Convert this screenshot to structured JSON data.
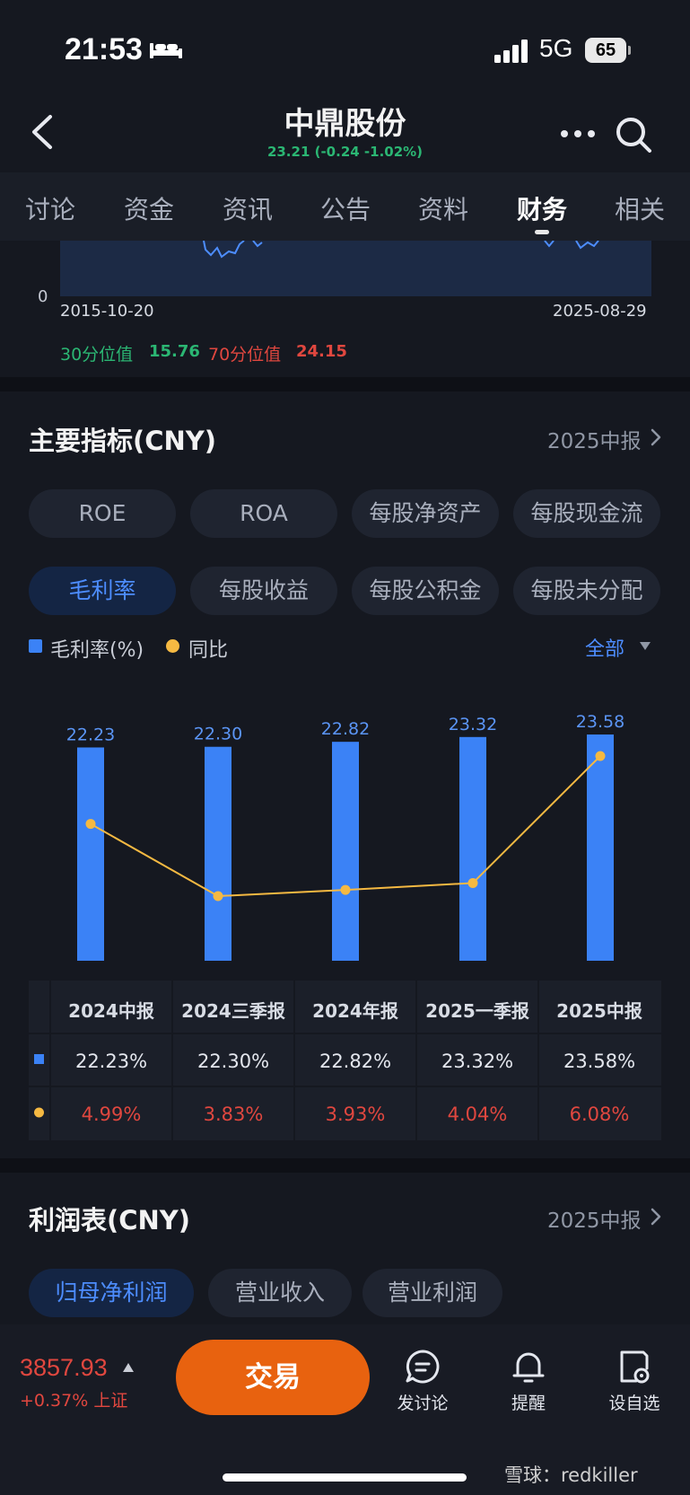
{
  "status_bar": {
    "time": "21:53",
    "network": "5G",
    "battery": "65"
  },
  "header": {
    "title": "中鼎股份",
    "quote": "23.21 (-0.24 -1.02%)"
  },
  "tabs": [
    {
      "label": "讨论"
    },
    {
      "label": "资金"
    },
    {
      "label": "资讯"
    },
    {
      "label": "公告"
    },
    {
      "label": "资料"
    },
    {
      "label": "财务"
    },
    {
      "label": "相关"
    }
  ],
  "valuation": {
    "zero": "0",
    "date_start": "2015-10-20",
    "date_end": "2025-08-29",
    "p30_label": "30分位值",
    "p30_value": "15.76",
    "p70_label": "70分位值",
    "p70_value": "24.15"
  },
  "indicators": {
    "title": "主要指标(CNY)",
    "period": "2025中报",
    "pills_row1": [
      "ROE",
      "ROA",
      "每股净资产",
      "每股现金流"
    ],
    "pills_row2": [
      "毛利率",
      "每股收益",
      "每股公积金",
      "每股未分配"
    ],
    "legend_a": "毛利率(%)",
    "legend_b": "同比",
    "all_label": "全部"
  },
  "chart_data": {
    "type": "bar",
    "categories": [
      "2024中报",
      "2024三季报",
      "2024年报",
      "2025一季报",
      "2025中报"
    ],
    "series": [
      {
        "name": "毛利率(%)",
        "type": "bar",
        "values": [
          22.23,
          22.3,
          22.82,
          23.32,
          23.58
        ],
        "color": "#3b82f6"
      },
      {
        "name": "同比",
        "type": "line",
        "values": [
          4.99,
          3.83,
          3.93,
          4.04,
          6.08
        ],
        "color": "#f5b942"
      }
    ],
    "bar_labels": [
      "22.23",
      "22.30",
      "22.82",
      "23.32",
      "23.58"
    ]
  },
  "table": {
    "headers": [
      "2024中报",
      "2024三季报",
      "2024年报",
      "2025一季报",
      "2025中报"
    ],
    "row1": [
      "22.23%",
      "22.30%",
      "22.82%",
      "23.32%",
      "23.58%"
    ],
    "row2": [
      "4.99%",
      "3.83%",
      "3.93%",
      "4.04%",
      "6.08%"
    ]
  },
  "income": {
    "title": "利润表(CNY)",
    "period": "2025中报",
    "pills": [
      "归母净利润",
      "营业收入",
      "营业利润"
    ]
  },
  "bottom": {
    "index_value": "3857.93",
    "index_change": "+0.37%  上证",
    "trade": "交易",
    "discuss": "发讨论",
    "remind": "提醒",
    "watchlist": "设自选"
  },
  "watermark": "雪球：redkiller",
  "colors": {
    "accent_blue": "#3b82f6",
    "up_red": "#e0473f",
    "down_green": "#2bb673",
    "trade_orange": "#e8620f"
  }
}
